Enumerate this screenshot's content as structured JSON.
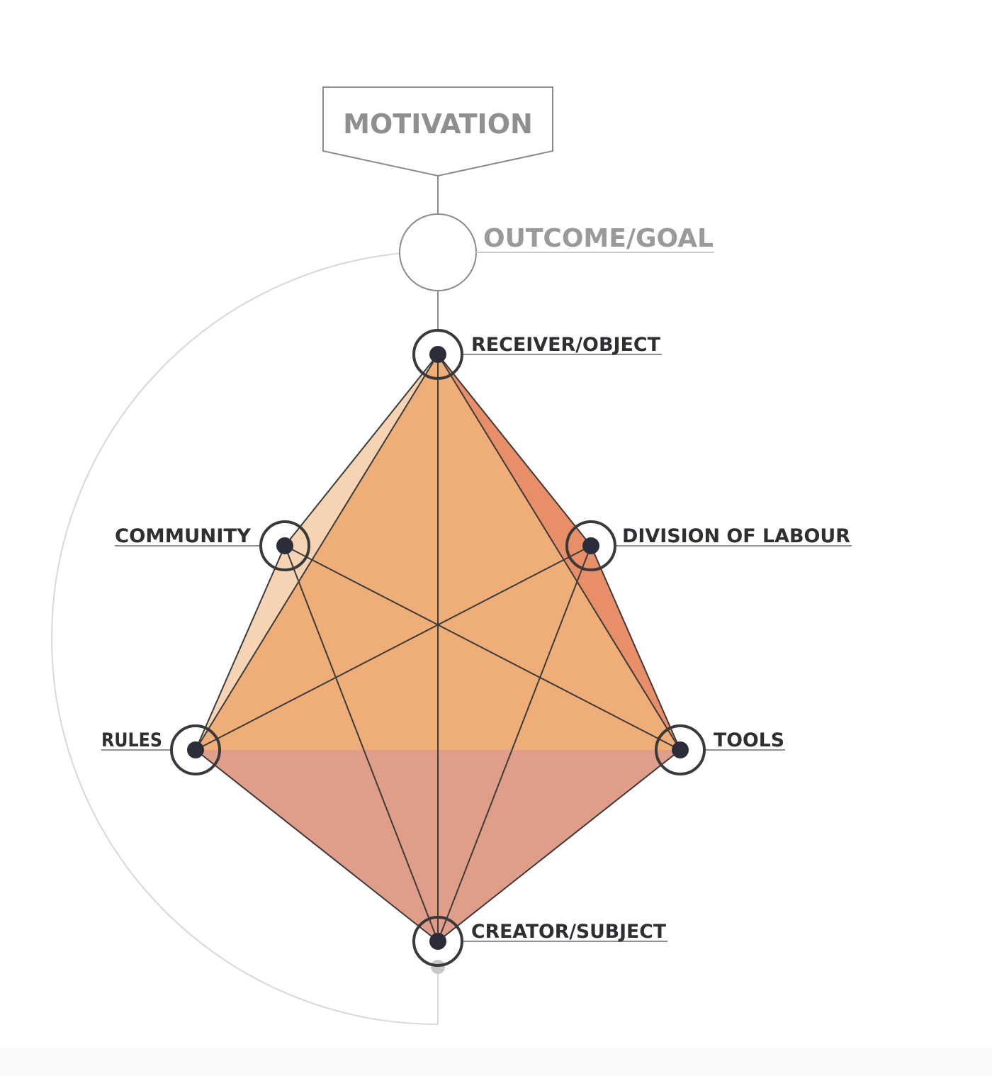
{
  "diagram": {
    "type": "activity-system-triangle",
    "motivation_label": "MOTIVATION",
    "outcome_label": "OUTCOME/GOAL",
    "nodes": {
      "receiver": "RECEIVER/OBJECT",
      "community": "COMMUNITY",
      "division": "DIVISION OF LABOUR",
      "rules": "RULES",
      "tools": "TOOLS",
      "creator": "CREATOR/SUBJECT"
    },
    "colors": {
      "upper_fill": "#efad78",
      "lower_fill": "#e09e8a",
      "left_facet": "#f6d3b2",
      "right_facet": "#e88e68",
      "node_dot": "#2b2d3a",
      "node_ring": "#3a3a3a",
      "line": "#3b3b3b",
      "guide_line": "#d8d8d8",
      "label_text": "#2f2f33",
      "muted_text": "#9a9a9a"
    }
  }
}
